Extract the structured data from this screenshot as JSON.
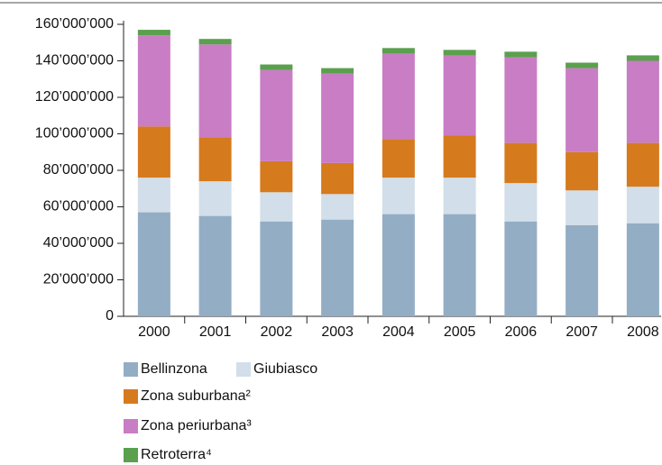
{
  "chart_data": {
    "type": "stacked_bar",
    "categories": [
      "2000",
      "2001",
      "2002",
      "2003",
      "2004",
      "2005",
      "2006",
      "2007",
      "2008"
    ],
    "series": [
      {
        "name": "Bellinzona",
        "color": "#93adc4",
        "values": [
          57000000,
          55000000,
          52000000,
          53000000,
          56000000,
          56000000,
          52000000,
          50000000,
          51000000
        ]
      },
      {
        "name": "Giubiasco",
        "color": "#d2dee9",
        "values": [
          19000000,
          19000000,
          16000000,
          14000000,
          20000000,
          20000000,
          21000000,
          19000000,
          20000000
        ]
      },
      {
        "name": "Zona suburbana²",
        "color": "#d67a1e",
        "values": [
          28000000,
          24000000,
          17000000,
          17000000,
          21000000,
          23000000,
          22000000,
          21000000,
          24000000
        ]
      },
      {
        "name": "Zona periurbana³",
        "color": "#c97dc4",
        "values": [
          50000000,
          51000000,
          50000000,
          49000000,
          47000000,
          44000000,
          47000000,
          46000000,
          45000000
        ]
      },
      {
        "name": "Retroterra⁴",
        "color": "#5aa04d",
        "values": [
          3000000,
          3000000,
          3000000,
          3000000,
          3000000,
          3000000,
          3000000,
          3000000,
          3000000
        ]
      }
    ],
    "ylim": [
      0,
      160000000
    ],
    "yticks": [
      0,
      {
        "value": 20000000,
        "label": "20’000’000"
      },
      {
        "value": 40000000,
        "label": "40’000’000"
      },
      {
        "value": 60000000,
        "label": "60’000’000"
      },
      {
        "value": 80000000,
        "label": "80’000’000"
      },
      {
        "value": 100000000,
        "label": "100’000’000"
      },
      {
        "value": 120000000,
        "label": "120’000’000"
      },
      {
        "value": 140000000,
        "label": "140’000’000"
      },
      {
        "value": 160000000,
        "label": "160’000’000"
      }
    ],
    "grid": false
  }
}
